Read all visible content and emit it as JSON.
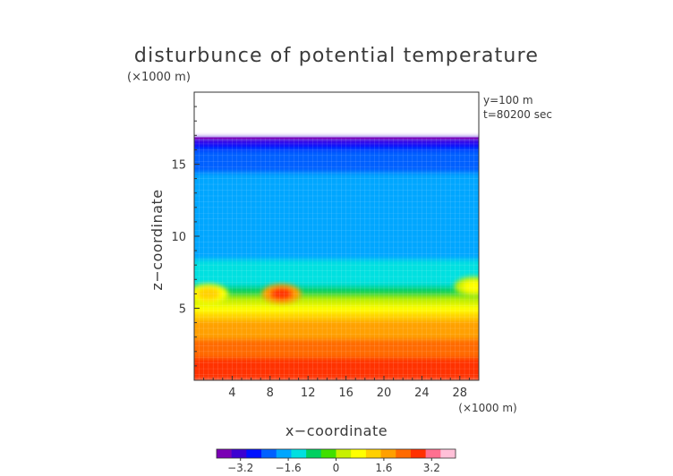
{
  "chart_data": {
    "type": "heatmap",
    "title": "disturbunce of potential temperature",
    "xlabel": "x−coordinate",
    "ylabel": "z−coordinate",
    "x_unit": "(×1000 m)",
    "y_unit": "(×1000 m)",
    "annotations": [
      "y=100 m",
      "t=80200 sec"
    ],
    "xlim": [
      0,
      30
    ],
    "ylim": [
      0,
      20
    ],
    "xticks": [
      4,
      8,
      12,
      16,
      20,
      24,
      28
    ],
    "xtick_labels": [
      "4",
      "8",
      "12",
      "16",
      "20",
      "24",
      "28"
    ],
    "yticks": [
      5,
      10,
      15
    ],
    "ytick_labels": [
      "5",
      "10",
      "15"
    ],
    "colorbar": {
      "min": -4.0,
      "max": 4.0,
      "ticks": [
        -3.2,
        -1.6,
        0,
        1.6,
        3.2
      ],
      "tick_labels": [
        "−3.2",
        "−1.6",
        "0",
        "1.6",
        "3.2"
      ],
      "colors": [
        "#7a00b4",
        "#3c00d2",
        "#0010ff",
        "#0060ff",
        "#00a6ff",
        "#00e0e0",
        "#00d060",
        "#40e000",
        "#c8f000",
        "#ffff00",
        "#ffd000",
        "#ffa000",
        "#ff6a00",
        "#ff3000",
        "#ff7090",
        "#ffc0d8"
      ]
    },
    "data_top_z": 16.8,
    "field_profile": [
      {
        "z": 0.0,
        "value": 3.0
      },
      {
        "z": 2.0,
        "value": 2.4
      },
      {
        "z": 4.0,
        "value": 1.6
      },
      {
        "z": 5.0,
        "value": 0.8
      },
      {
        "z": 6.0,
        "value": -0.4
      },
      {
        "z": 7.0,
        "value": -1.4
      },
      {
        "z": 10.0,
        "value": -1.6
      },
      {
        "z": 14.0,
        "value": -1.9
      },
      {
        "z": 16.0,
        "value": -2.4
      },
      {
        "z": 16.8,
        "value": -3.2
      }
    ],
    "warm_anomalies": [
      {
        "x": 9.2,
        "z": 6.0,
        "value": 2.8
      },
      {
        "x": 1.5,
        "z": 6.0,
        "value": 1.2
      },
      {
        "x": 29.5,
        "z": 6.5,
        "value": 0.6
      }
    ]
  }
}
